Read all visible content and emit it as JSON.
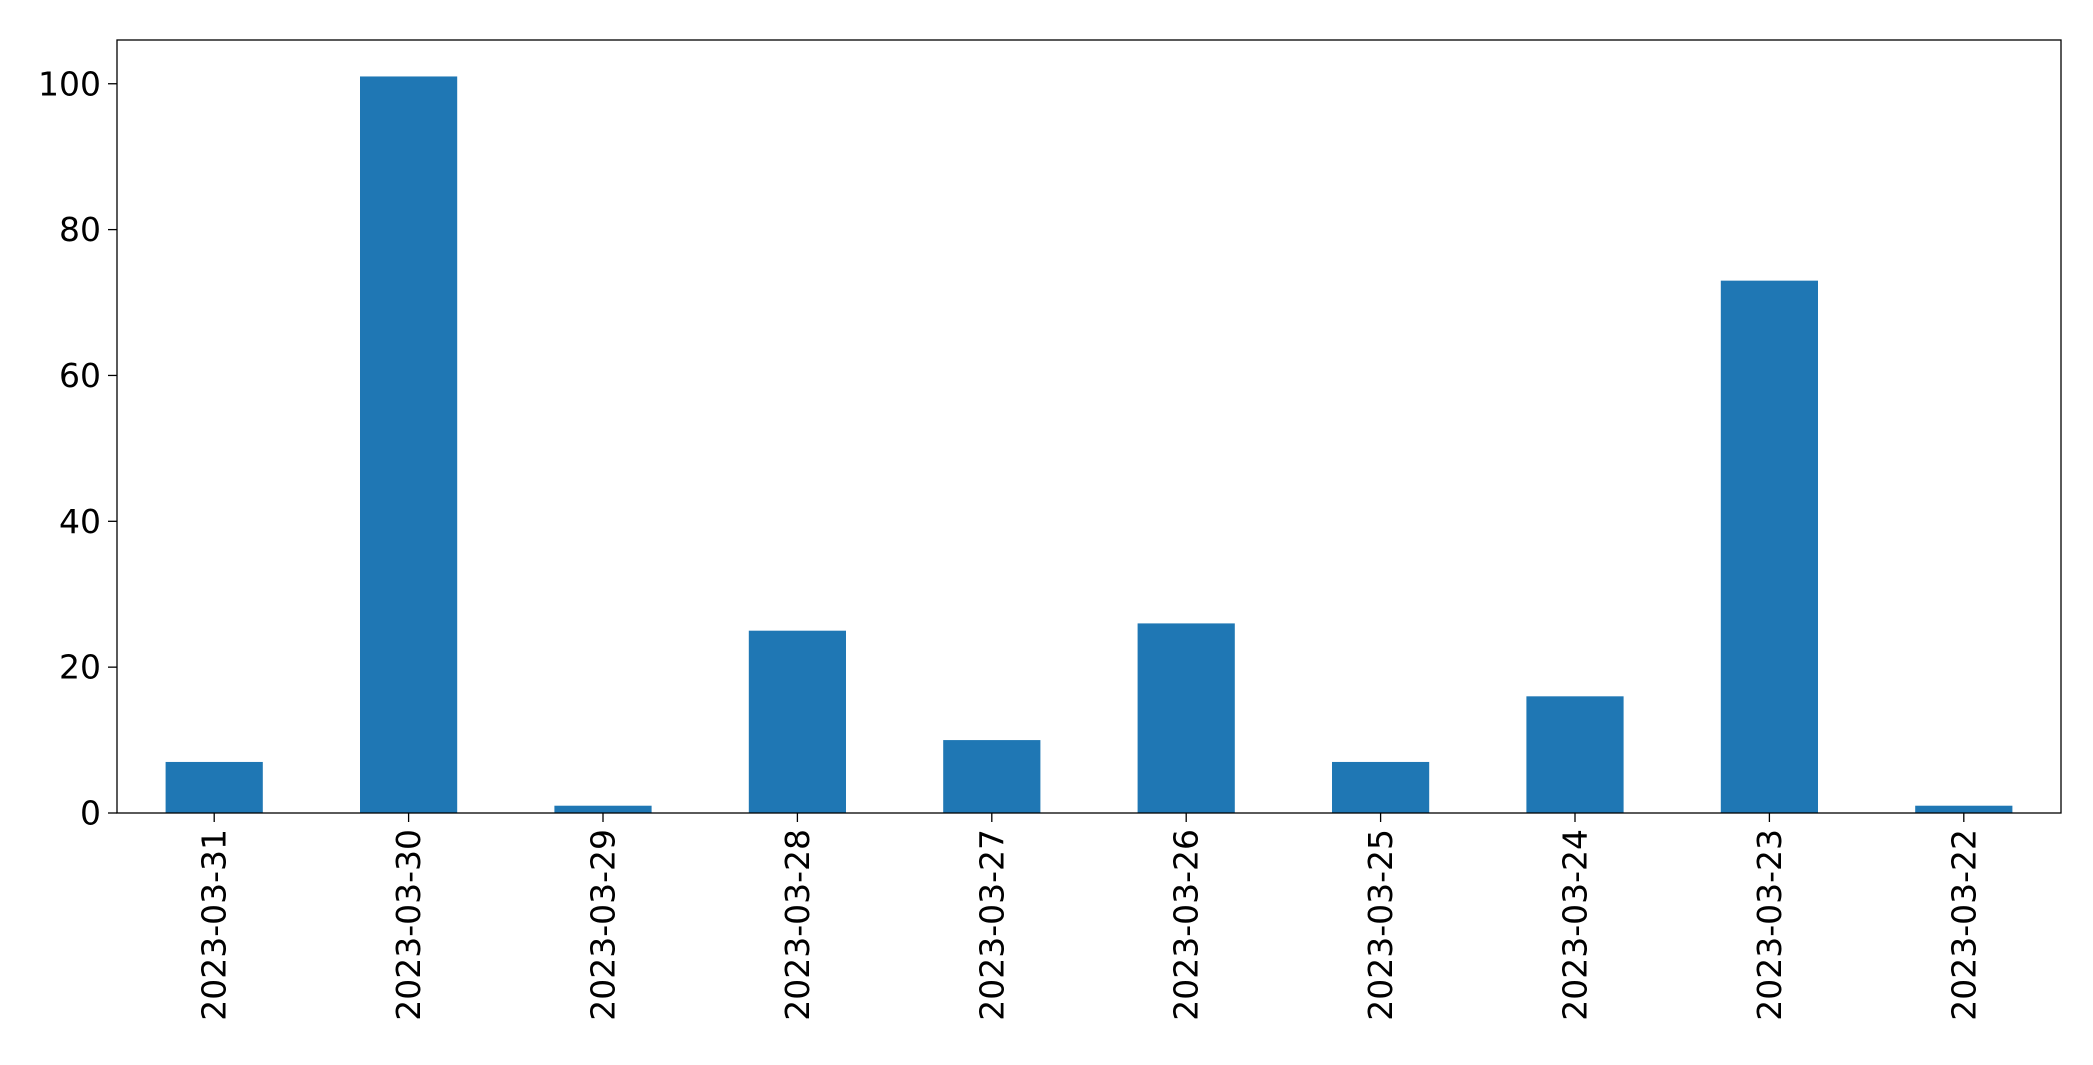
{
  "chart_data": {
    "type": "bar",
    "title": "",
    "xlabel": "",
    "ylabel": "",
    "categories": [
      "2023-03-31",
      "2023-03-30",
      "2023-03-29",
      "2023-03-28",
      "2023-03-27",
      "2023-03-26",
      "2023-03-25",
      "2023-03-24",
      "2023-03-23",
      "2023-03-22"
    ],
    "values": [
      7,
      101,
      1,
      25,
      10,
      26,
      7,
      16,
      73,
      1
    ],
    "ylim": [
      0,
      106
    ],
    "yticks": [
      0,
      20,
      40,
      60,
      80,
      100
    ],
    "ytick_labels": [
      "0",
      "20",
      "40",
      "60",
      "80",
      "100"
    ],
    "grid": false,
    "legend": false,
    "bar_color": "#1f77b4"
  }
}
